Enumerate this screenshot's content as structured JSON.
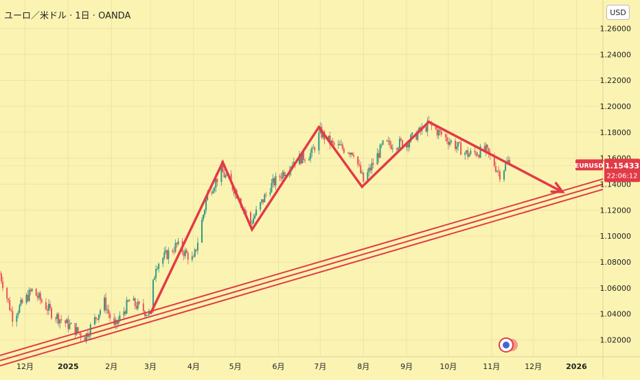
{
  "header": {
    "title": "ユーロ／米ドル · 1日 · OANDA",
    "currency_button": "USD"
  },
  "colors": {
    "background": "#fbf3b2",
    "pattern_line": "#e23a46",
    "trend_channel": "#e23a46",
    "candle_up": "#2e9a86",
    "candle_down": "#e8555c",
    "price_label_bg": "#e23a46"
  },
  "chart_data": {
    "type": "candlestick",
    "symbol": "EURUSD",
    "title": "ユーロ／米ドル · 1日 · OANDA",
    "currency": "USD",
    "y_ticks": [
      "1.26000",
      "1.24000",
      "1.22000",
      "1.20000",
      "1.18000",
      "1.16000",
      "1.14000",
      "1.12000",
      "1.10000",
      "1.08000",
      "1.06000",
      "1.04000",
      "1.02000"
    ],
    "y_tick_values": [
      1.26,
      1.24,
      1.22,
      1.2,
      1.18,
      1.16,
      1.14,
      1.12,
      1.1,
      1.08,
      1.06,
      1.04,
      1.02
    ],
    "ylim": [
      1.007,
      1.282
    ],
    "x_ticks": [
      "12月",
      "2025",
      "2月",
      "3月",
      "4月",
      "5月",
      "6月",
      "7月",
      "8月",
      "9月",
      "10月",
      "11月",
      "12月",
      "2026"
    ],
    "x_tick_dates": [
      "2024-12-01",
      "2025-01-01",
      "2025-02-01",
      "2025-03-01",
      "2025-04-01",
      "2025-05-01",
      "2025-06-01",
      "2025-07-01",
      "2025-08-01",
      "2025-09-01",
      "2025-10-01",
      "2025-11-01",
      "2025-12-01",
      "2026-01-01"
    ],
    "xlim": [
      "2024-11-13",
      "2026-01-20"
    ],
    "current_price": {
      "label": "EURUSD",
      "value": "1.15433",
      "countdown": "22:06:12",
      "numeric": 1.15433
    },
    "price_path": [
      [
        "2024-11-13",
        1.071
      ],
      [
        "2024-11-22",
        1.038
      ],
      [
        "2024-12-06",
        1.058
      ],
      [
        "2024-12-20",
        1.041
      ],
      [
        "2025-01-13",
        1.022
      ],
      [
        "2025-01-27",
        1.049
      ],
      [
        "2025-02-03",
        1.029
      ],
      [
        "2025-02-14",
        1.05
      ],
      [
        "2025-02-28",
        1.04
      ],
      [
        "2025-03-05",
        1.078
      ],
      [
        "2025-03-20",
        1.093
      ],
      [
        "2025-04-01",
        1.081
      ],
      [
        "2025-04-11",
        1.132
      ],
      [
        "2025-04-21",
        1.15
      ],
      [
        "2025-05-01",
        1.135
      ],
      [
        "2025-05-12",
        1.11
      ],
      [
        "2025-05-26",
        1.138
      ],
      [
        "2025-06-12",
        1.158
      ],
      [
        "2025-06-25",
        1.164
      ],
      [
        "2025-07-01",
        1.18
      ],
      [
        "2025-07-10",
        1.17
      ],
      [
        "2025-07-25",
        1.165
      ],
      [
        "2025-08-01",
        1.142
      ],
      [
        "2025-08-15",
        1.17
      ],
      [
        "2025-09-01",
        1.172
      ],
      [
        "2025-09-17",
        1.186
      ],
      [
        "2025-10-01",
        1.174
      ],
      [
        "2025-10-15",
        1.163
      ],
      [
        "2025-10-28",
        1.166
      ],
      [
        "2025-11-07",
        1.148
      ],
      [
        "2025-11-14",
        1.159
      ]
    ],
    "pattern_lines": [
      [
        [
          "2025-03-01",
          1.04
        ],
        [
          "2025-04-22",
          1.157
        ],
        [
          "2025-05-13",
          1.105
        ],
        [
          "2025-06-30",
          1.184
        ],
        [
          "2025-07-31",
          1.138
        ],
        [
          "2025-09-17",
          1.188
        ],
        [
          "2025-12-22",
          1.134
        ]
      ]
    ],
    "trend_channel": {
      "start_date": "2024-11-13",
      "end_date": "2026-01-20",
      "lines": [
        [
          1.008,
          1.144
        ],
        [
          1.004,
          1.14
        ],
        [
          1.0,
          1.136
        ]
      ]
    }
  }
}
